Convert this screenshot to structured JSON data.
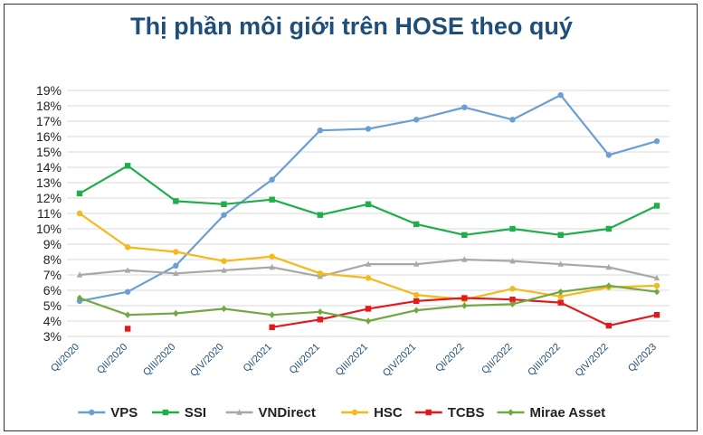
{
  "colors": {
    "title": "#1f4e79",
    "grid": "#d9d9d9",
    "axis_text": "#222222",
    "xtick_text": "#1f4e79"
  },
  "chart_data": {
    "type": "line",
    "title": "Thị phần môi giới trên HOSE theo quý",
    "xlabel": "",
    "ylabel": "",
    "categories": [
      "QI/2020",
      "QII/2020",
      "QIII/2020",
      "QIV/2020",
      "QI/2021",
      "QII/2021",
      "QIII/2021",
      "QIV/2021",
      "QI/2022",
      "QII/2022",
      "QIII/2022",
      "QIV/2022",
      "QI/2023"
    ],
    "ylim": [
      3,
      19
    ],
    "yticks": [
      "3%",
      "4%",
      "5%",
      "6%",
      "7%",
      "8%",
      "9%",
      "10%",
      "11%",
      "12%",
      "13%",
      "14%",
      "15%",
      "16%",
      "17%",
      "18%",
      "19%"
    ],
    "grid": true,
    "legend_position": "bottom",
    "series": [
      {
        "name": "VPS",
        "color": "#6a9fd4",
        "marker": "circle",
        "values": [
          5.3,
          5.9,
          7.6,
          10.9,
          13.2,
          16.4,
          16.5,
          17.1,
          17.9,
          17.1,
          18.7,
          14.8,
          15.7
        ]
      },
      {
        "name": "SSI",
        "color": "#1fae4a",
        "marker": "square",
        "values": [
          12.3,
          14.1,
          11.8,
          11.6,
          11.9,
          10.9,
          11.6,
          10.3,
          9.6,
          10.0,
          9.6,
          10.0,
          11.5
        ]
      },
      {
        "name": "VNDirect",
        "color": "#a8a8a8",
        "marker": "triangle",
        "values": [
          7.0,
          7.3,
          7.1,
          7.3,
          7.5,
          6.9,
          7.7,
          7.7,
          8.0,
          7.9,
          7.7,
          7.5,
          6.8
        ]
      },
      {
        "name": "HSC",
        "color": "#f5b91a",
        "marker": "circle",
        "values": [
          11.0,
          8.8,
          8.5,
          7.9,
          8.2,
          7.1,
          6.8,
          5.7,
          5.4,
          6.1,
          5.6,
          6.2,
          6.3
        ]
      },
      {
        "name": "TCBS",
        "color": "#e11b1b",
        "marker": "square",
        "values": [
          null,
          3.5,
          null,
          null,
          3.6,
          4.1,
          4.8,
          5.3,
          5.5,
          5.4,
          5.2,
          3.7,
          4.4
        ]
      },
      {
        "name": "Mirae Asset",
        "color": "#71a83f",
        "marker": "diamond",
        "values": [
          5.5,
          4.4,
          4.5,
          4.8,
          4.4,
          4.6,
          4.0,
          4.7,
          5.0,
          5.1,
          5.9,
          6.3,
          5.9
        ]
      }
    ]
  }
}
